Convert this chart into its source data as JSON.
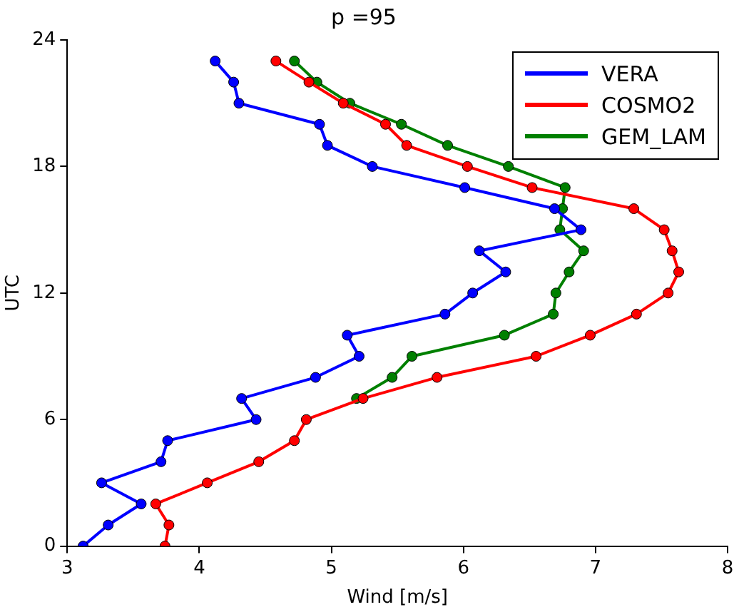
{
  "chart_data": {
    "type": "line",
    "title": "p =95",
    "xlabel": "Wind [m/s]",
    "ylabel": "UTC",
    "xlim": [
      3,
      8
    ],
    "xticks": [
      3,
      4,
      5,
      6,
      7,
      8
    ],
    "ylim": [
      0,
      24
    ],
    "yticks": [
      0,
      6,
      12,
      18,
      24
    ],
    "grid": false,
    "legend": "top right",
    "marker": "circle",
    "line_style": "solid",
    "series": [
      {
        "name": "VERA",
        "color": "#0000ff",
        "x": [
          3.12,
          3.31,
          3.56,
          3.26,
          3.71,
          3.76,
          4.43,
          4.32,
          4.88,
          5.21,
          5.12,
          5.86,
          6.07,
          6.32,
          6.12,
          6.89,
          6.69,
          6.01,
          5.31,
          4.97,
          4.91,
          4.3,
          4.26,
          4.12
        ],
        "values": [
          0,
          1,
          2,
          3,
          4,
          5,
          6,
          7,
          8,
          9,
          10,
          11,
          12,
          13,
          14,
          15,
          16,
          17,
          18,
          19,
          20,
          21,
          22,
          23
        ]
      },
      {
        "name": "COSMO2",
        "color": "#ff0000",
        "x": [
          3.74,
          3.77,
          3.67,
          4.06,
          4.45,
          4.72,
          4.81,
          5.24,
          5.8,
          6.55,
          6.96,
          7.31,
          7.55,
          7.63,
          7.58,
          7.52,
          7.29,
          6.52,
          6.03,
          5.57,
          5.41,
          5.09,
          4.83,
          4.58
        ],
        "values": [
          0,
          1,
          2,
          3,
          4,
          5,
          6,
          7,
          8,
          9,
          10,
          11,
          12,
          13,
          14,
          15,
          16,
          17,
          18,
          19,
          20,
          21,
          22,
          23
        ]
      },
      {
        "name": "GEM_LAM",
        "color": "#008000",
        "x": [
          5.19,
          5.46,
          5.61,
          6.31,
          6.68,
          6.7,
          6.8,
          6.91,
          6.73,
          6.75,
          6.77,
          6.34,
          5.88,
          5.53,
          5.14,
          4.89,
          4.72
        ],
        "values": [
          7,
          8,
          9,
          10,
          11,
          12,
          13,
          14,
          15,
          16,
          17,
          18,
          19,
          20,
          21,
          22,
          23
        ]
      }
    ]
  }
}
